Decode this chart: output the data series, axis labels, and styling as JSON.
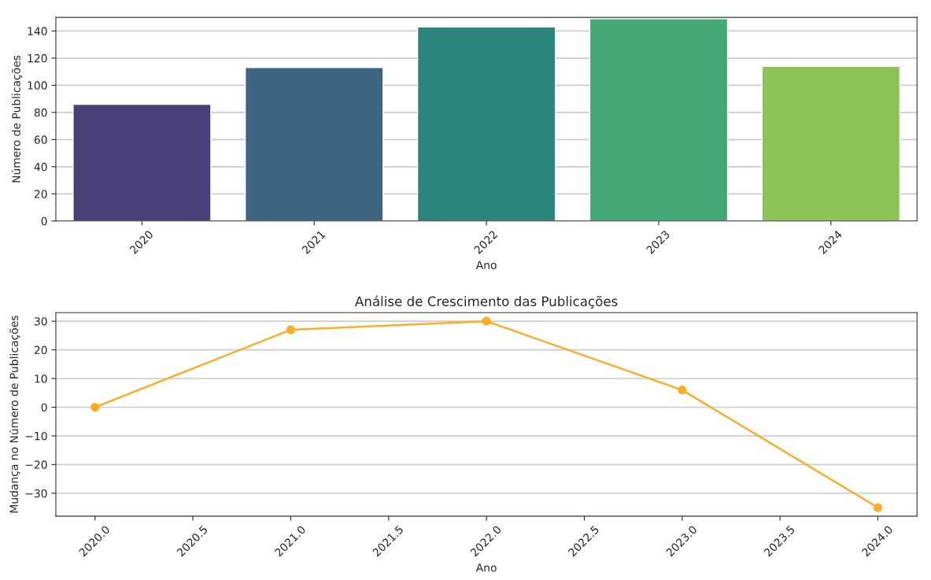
{
  "chart_data": [
    {
      "type": "bar",
      "xlabel": "Ano",
      "ylabel": "Número de Publicações",
      "categories": [
        "2020",
        "2021",
        "2022",
        "2023",
        "2024"
      ],
      "values": [
        86,
        113,
        143,
        149,
        114
      ],
      "colors": [
        "#4a3f77",
        "#3d6480",
        "#2b847d",
        "#44a776",
        "#8bc455"
      ],
      "ylim": [
        0,
        150
      ],
      "yticks": [
        0,
        20,
        40,
        60,
        80,
        100,
        120,
        140
      ],
      "grid": "y"
    },
    {
      "type": "line",
      "title": "Análise de Crescimento das Publicações",
      "xlabel": "Ano",
      "ylabel": "Mudança no Número de Publicações",
      "x": [
        2020,
        2021,
        2022,
        2023,
        2024
      ],
      "series": [
        {
          "color": "#fbae25",
          "values": [
            0,
            27,
            30,
            6,
            -35
          ]
        }
      ],
      "xlim": [
        2019.8,
        2024.2
      ],
      "xticks": [
        {
          "value": 2020,
          "label": "2020.0"
        },
        {
          "value": 2020.5,
          "label": "2020.5"
        },
        {
          "value": 2021,
          "label": "2021.0"
        },
        {
          "value": 2021.5,
          "label": "2021.5"
        },
        {
          "value": 2022,
          "label": "2022.0"
        },
        {
          "value": 2022.5,
          "label": "2022.5"
        },
        {
          "value": 2023,
          "label": "2023.0"
        },
        {
          "value": 2023.5,
          "label": "2023.5"
        },
        {
          "value": 2024,
          "label": "2024.0"
        }
      ],
      "ylim": [
        -38,
        33
      ],
      "yticks": [
        {
          "value": -30,
          "label": "−30"
        },
        {
          "value": -20,
          "label": "−20"
        },
        {
          "value": -10,
          "label": "−10"
        },
        0,
        10,
        20,
        30
      ],
      "grid": "y",
      "marker": "circle",
      "line_style": "solid"
    }
  ]
}
